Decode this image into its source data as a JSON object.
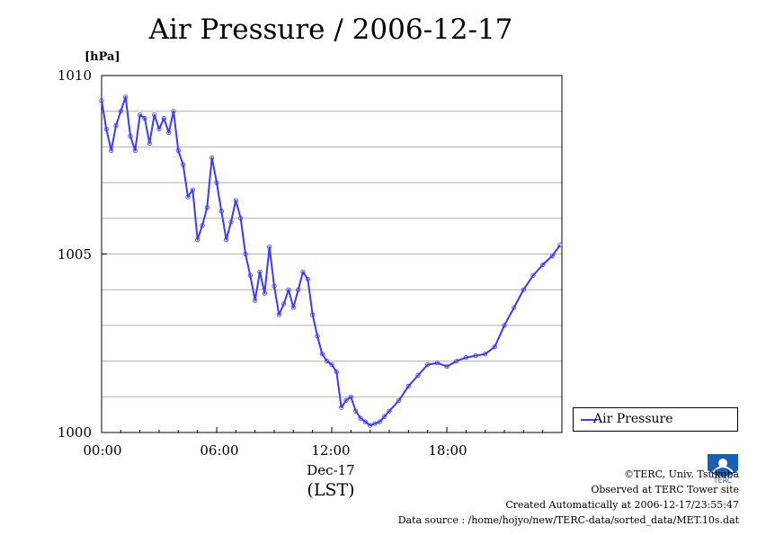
{
  "chart_data": {
    "type": "line",
    "title": "Air Pressure / 2006-12-17",
    "ylabel_unit": "[hPa]",
    "ylim": [
      1000,
      1010
    ],
    "yticks": [
      "1010",
      "1005",
      "1000"
    ],
    "xlim": [
      "00:00",
      "24:00"
    ],
    "xticks": [
      "00:00",
      "06:00",
      "12:00",
      "18:00"
    ],
    "date_label": "Dec-17",
    "timezone_label": "(LST)",
    "grid": true,
    "legend": {
      "position": "outside-right-bottom",
      "entries": [
        "Air Pressure"
      ]
    },
    "series": [
      {
        "name": "Air Pressure",
        "color": "#3b3bff",
        "x_hours": [
          0,
          0.25,
          0.5,
          0.75,
          1.0,
          1.25,
          1.5,
          1.75,
          2.0,
          2.25,
          2.5,
          2.75,
          3.0,
          3.25,
          3.5,
          3.75,
          4.0,
          4.25,
          4.5,
          4.75,
          5.0,
          5.25,
          5.5,
          5.75,
          6.0,
          6.25,
          6.5,
          6.75,
          7.0,
          7.25,
          7.5,
          7.75,
          8.0,
          8.25,
          8.5,
          8.75,
          9.0,
          9.25,
          9.5,
          9.75,
          10.0,
          10.25,
          10.5,
          10.75,
          11.0,
          11.25,
          11.5,
          11.75,
          12.0,
          12.25,
          12.5,
          12.75,
          13.0,
          13.25,
          13.5,
          13.75,
          14.0,
          14.25,
          14.5,
          14.75,
          15.0,
          15.5,
          16.0,
          16.5,
          17.0,
          17.5,
          18.0,
          18.5,
          19.0,
          19.5,
          20.0,
          20.5,
          21.0,
          21.5,
          22.0,
          22.5,
          23.0,
          23.5,
          23.9
        ],
        "values": [
          1009.3,
          1008.5,
          1007.9,
          1008.6,
          1009.0,
          1009.4,
          1008.3,
          1007.9,
          1008.9,
          1008.8,
          1008.1,
          1008.9,
          1008.5,
          1008.8,
          1008.4,
          1009.0,
          1007.9,
          1007.5,
          1006.6,
          1006.8,
          1005.4,
          1005.8,
          1006.3,
          1007.7,
          1007.0,
          1006.2,
          1005.4,
          1005.9,
          1006.5,
          1006.0,
          1005.0,
          1004.4,
          1003.7,
          1004.5,
          1003.9,
          1005.2,
          1004.1,
          1003.3,
          1003.6,
          1004.0,
          1003.5,
          1004.0,
          1004.5,
          1004.3,
          1003.3,
          1002.7,
          1002.2,
          1002.0,
          1001.9,
          1001.7,
          1000.7,
          1000.9,
          1001.0,
          1000.6,
          1000.4,
          1000.3,
          1000.2,
          1000.25,
          1000.3,
          1000.45,
          1000.6,
          1000.9,
          1001.3,
          1001.6,
          1001.9,
          1001.95,
          1001.85,
          1002.0,
          1002.1,
          1002.15,
          1002.2,
          1002.4,
          1003.0,
          1003.5,
          1004.0,
          1004.4,
          1004.7,
          1004.95,
          1005.25
        ]
      }
    ]
  },
  "credits": {
    "copyright": "©TERC, Univ. Tsukuba",
    "site": "Observed at TERC Tower site",
    "created": "Created Automatically at 2006-12-17/23:55:47",
    "source": "Data source : /home/hojyo/new/TERC-data/sorted_data/MET.10s.dat"
  },
  "logo": {
    "text": "TERC",
    "color": "#1a5fb4"
  }
}
